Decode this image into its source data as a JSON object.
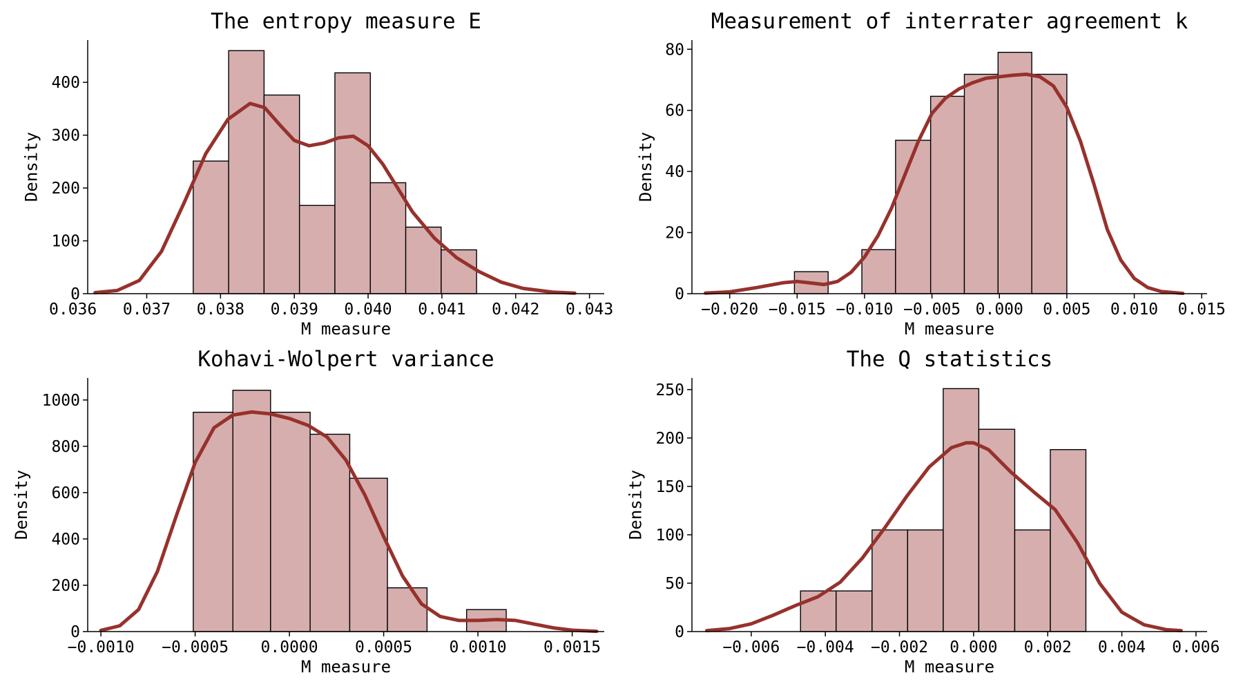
{
  "colors": {
    "bar_fill": "#d6aeae",
    "kde_line": "#97312c",
    "bar_edge": "#000000"
  },
  "chart_data": [
    {
      "type": "bar",
      "title": "The entropy measure E",
      "xlabel": "M measure",
      "ylabel": "Density",
      "xlim": [
        0.0362,
        0.0432
      ],
      "ylim": [
        0,
        480
      ],
      "xticks": [
        0.036,
        0.037,
        0.038,
        0.039,
        0.04,
        0.041,
        0.042,
        0.043
      ],
      "xticklabels": [
        "0.036",
        "0.037",
        "0.038",
        "0.039",
        "0.040",
        "0.041",
        "0.042",
        "0.043"
      ],
      "yticks": [
        0,
        100,
        200,
        300,
        400
      ],
      "yticklabels": [
        "0",
        "100",
        "200",
        "300",
        "400"
      ],
      "bins": [
        [
          0.03763,
          0.03811,
          251
        ],
        [
          0.03811,
          0.03859,
          460
        ],
        [
          0.03859,
          0.03907,
          376
        ],
        [
          0.03907,
          0.03955,
          167
        ],
        [
          0.03955,
          0.04003,
          418
        ],
        [
          0.04003,
          0.04051,
          210
        ],
        [
          0.04051,
          0.04099,
          126
        ],
        [
          0.04099,
          0.04147,
          83
        ]
      ],
      "kde": {
        "x": [
          0.0363,
          0.0366,
          0.0369,
          0.0372,
          0.0375,
          0.0378,
          0.0381,
          0.0384,
          0.0386,
          0.0388,
          0.039,
          0.0392,
          0.0394,
          0.0396,
          0.0398,
          0.04,
          0.0402,
          0.0404,
          0.0406,
          0.0409,
          0.0412,
          0.0415,
          0.0418,
          0.0421,
          0.0425,
          0.0428
        ],
        "y": [
          2,
          6,
          25,
          80,
          170,
          265,
          330,
          360,
          352,
          320,
          290,
          280,
          285,
          295,
          298,
          280,
          245,
          200,
          155,
          105,
          68,
          42,
          22,
          10,
          3,
          1
        ]
      }
    },
    {
      "type": "bar",
      "title": "Measurement of interrater agreement k",
      "xlabel": "M measure",
      "ylabel": "Density",
      "xlim": [
        -0.0228,
        0.0154
      ],
      "ylim": [
        0,
        83
      ],
      "xticks": [
        -0.02,
        -0.015,
        -0.01,
        -0.005,
        0.0,
        0.005,
        0.01,
        0.015
      ],
      "xticklabels": [
        "−0.020",
        "−0.015",
        "−0.010",
        "−0.005",
        "0.000",
        "0.005",
        "0.010",
        "0.015"
      ],
      "yticks": [
        0,
        20,
        40,
        60,
        80
      ],
      "yticklabels": [
        "0",
        "20",
        "40",
        "60",
        "80"
      ],
      "bins": [
        [
          -0.0152,
          -0.0127,
          7.2
        ],
        [
          -0.0127,
          -0.0102,
          0
        ],
        [
          -0.0102,
          -0.0077,
          14.4
        ],
        [
          -0.0077,
          -0.0051,
          50.2
        ],
        [
          -0.0051,
          -0.0026,
          64.6
        ],
        [
          -0.0026,
          -0.0001,
          71.8
        ],
        [
          -0.0001,
          0.0024,
          79
        ],
        [
          0.0024,
          0.005,
          71.8
        ]
      ],
      "kde": {
        "x": [
          -0.0218,
          -0.02,
          -0.018,
          -0.016,
          -0.015,
          -0.014,
          -0.013,
          -0.012,
          -0.011,
          -0.01,
          -0.009,
          -0.008,
          -0.007,
          -0.006,
          -0.005,
          -0.004,
          -0.003,
          -0.002,
          -0.001,
          0.0,
          0.001,
          0.002,
          0.003,
          0.004,
          0.005,
          0.006,
          0.007,
          0.008,
          0.009,
          0.01,
          0.011,
          0.012,
          0.0136
        ],
        "y": [
          0.2,
          0.6,
          2,
          3.6,
          4,
          3.5,
          3.0,
          4.0,
          7,
          12,
          19,
          28,
          39,
          50,
          59,
          64,
          67,
          69,
          70.5,
          71,
          71.5,
          71.8,
          71,
          68,
          61,
          50,
          36,
          21,
          11,
          5,
          2,
          0.7,
          0.1
        ]
      }
    },
    {
      "type": "bar",
      "title": "Kohavi-Wolpert variance",
      "xlabel": "M measure",
      "ylabel": "Density",
      "xlim": [
        -0.00107,
        0.00167
      ],
      "ylim": [
        0,
        1095
      ],
      "xticks": [
        -0.001,
        -0.0005,
        0.0,
        0.0005,
        0.001,
        0.0015
      ],
      "xticklabels": [
        "−0.0010",
        "−0.0005",
        "0.0000",
        "0.0005",
        "0.0010",
        "0.0015"
      ],
      "yticks": [
        0,
        200,
        400,
        600,
        800,
        1000
      ],
      "yticklabels": [
        "0",
        "200",
        "400",
        "600",
        "800",
        "1000"
      ],
      "bins": [
        [
          -0.00051,
          -0.0003,
          947
        ],
        [
          -0.0003,
          -0.0001,
          1042
        ],
        [
          -0.0001,
          0.00011,
          947
        ],
        [
          0.00011,
          0.00032,
          852
        ],
        [
          0.00032,
          0.00052,
          662
        ],
        [
          0.00052,
          0.00073,
          189
        ],
        [
          0.00073,
          0.00094,
          0
        ],
        [
          0.00094,
          0.00115,
          95
        ]
      ],
      "kde": {
        "x": [
          -0.001,
          -0.0009,
          -0.0008,
          -0.0007,
          -0.0006,
          -0.0005,
          -0.0004,
          -0.0003,
          -0.0002,
          -0.0001,
          0.0,
          0.0001,
          0.0002,
          0.0003,
          0.0004,
          0.0005,
          0.0006,
          0.0007,
          0.0008,
          0.0009,
          0.001,
          0.0011,
          0.0012,
          0.0013,
          0.0014,
          0.0015,
          0.00163
        ],
        "y": [
          5,
          25,
          95,
          260,
          500,
          730,
          880,
          935,
          948,
          940,
          920,
          890,
          840,
          740,
          590,
          410,
          240,
          120,
          65,
          48,
          48,
          52,
          48,
          32,
          16,
          6,
          1
        ]
      }
    },
    {
      "type": "bar",
      "title": "The Q statistics",
      "xlabel": "M measure",
      "ylabel": "Density",
      "xlim": [
        -0.0076,
        0.0063
      ],
      "ylim": [
        0,
        262
      ],
      "xticks": [
        -0.006,
        -0.004,
        -0.002,
        0.0,
        0.002,
        0.004,
        0.006
      ],
      "xticklabels": [
        "−0.006",
        "−0.004",
        "−0.002",
        "0.000",
        "0.002",
        "0.004",
        "0.006"
      ],
      "yticks": [
        0,
        50,
        100,
        150,
        200,
        250
      ],
      "yticklabels": [
        "0",
        "50",
        "100",
        "150",
        "200",
        "250"
      ],
      "bins": [
        [
          -0.00467,
          -0.00371,
          42
        ],
        [
          -0.00371,
          -0.00274,
          42
        ],
        [
          -0.00274,
          -0.00178,
          105
        ],
        [
          -0.00178,
          -0.00082,
          105
        ],
        [
          -0.00082,
          0.00014,
          251
        ],
        [
          0.00014,
          0.00111,
          209
        ],
        [
          0.00111,
          0.00207,
          105
        ],
        [
          0.00207,
          0.00303,
          188
        ]
      ],
      "kde": {
        "x": [
          -0.0072,
          -0.0066,
          -0.006,
          -0.0054,
          -0.0048,
          -0.0042,
          -0.0036,
          -0.003,
          -0.0024,
          -0.0018,
          -0.0012,
          -0.0006,
          -0.0002,
          0.0,
          0.0004,
          0.001,
          0.0016,
          0.0022,
          0.0028,
          0.0034,
          0.004,
          0.0046,
          0.0052,
          0.0056
        ],
        "y": [
          1,
          3,
          8,
          17,
          27,
          36,
          51,
          76,
          107,
          140,
          170,
          190,
          195,
          195,
          188,
          165,
          145,
          126,
          92,
          50,
          20,
          7,
          2,
          1
        ]
      }
    }
  ]
}
